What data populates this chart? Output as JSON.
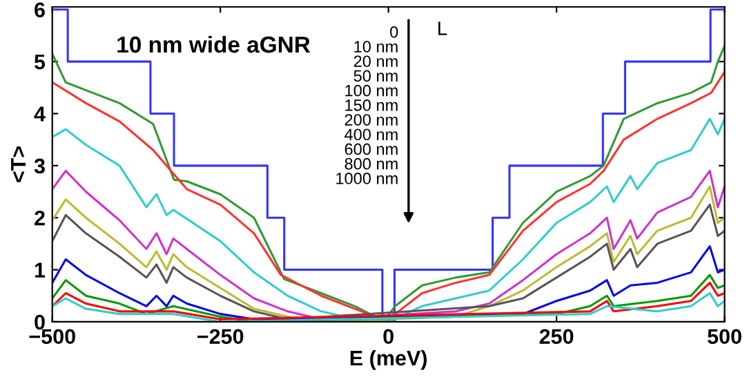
{
  "chart_data": {
    "type": "line",
    "xlabel": "E (meV)",
    "ylabel": "<T>",
    "xlim": [
      -500,
      500
    ],
    "ylim": [
      0,
      6.05
    ],
    "xticks": [
      -500,
      -250,
      0,
      250,
      500
    ],
    "yticks": [
      0,
      1,
      2,
      3,
      4,
      5,
      6
    ],
    "grid": false,
    "marker": "none",
    "line_style": "solid",
    "annotations": [
      "10 nm wide aGNR",
      "L",
      "0",
      "10 nm",
      "20 nm",
      "50 nm",
      "100 nm",
      "150 nm",
      "200 nm",
      "400 nm",
      "600 nm",
      "800 nm",
      "1000 nm"
    ],
    "series": [
      {
        "type": "step",
        "color": "#3333ff",
        "x": [
          -500,
          -477,
          -354,
          -319,
          -180,
          -155,
          -9,
          9,
          155,
          180,
          319,
          352,
          479,
          500
        ],
        "values": [
          6,
          5,
          4,
          3,
          2,
          1,
          0,
          1,
          2,
          3,
          4,
          5,
          6,
          6
        ]
      },
      {
        "color": "#339933",
        "x": [
          -500,
          -480,
          -450,
          -400,
          -350,
          -319,
          -300,
          -250,
          -200,
          -155,
          -100,
          -50,
          -20,
          -5,
          10,
          50,
          100,
          150,
          200,
          250,
          300,
          320,
          350,
          400,
          450,
          480,
          490,
          500
        ],
        "values": [
          5.15,
          4.6,
          4.45,
          4.2,
          3.8,
          2.73,
          2.7,
          2.45,
          2.0,
          0.82,
          0.55,
          0.3,
          0.1,
          0.05,
          0.3,
          0.7,
          0.85,
          0.95,
          1.9,
          2.5,
          2.8,
          3.0,
          3.9,
          4.2,
          4.4,
          4.6,
          5.0,
          5.3
        ]
      },
      {
        "color": "#ff3333",
        "x": [
          -500,
          -450,
          -400,
          -350,
          -320,
          -300,
          -250,
          -200,
          -160,
          -100,
          -50,
          -10,
          10,
          50,
          100,
          150,
          200,
          250,
          300,
          320,
          350,
          400,
          450,
          480,
          500
        ],
        "values": [
          4.6,
          4.2,
          3.85,
          3.3,
          2.85,
          2.55,
          2.25,
          1.7,
          0.9,
          0.5,
          0.25,
          0.05,
          0.15,
          0.55,
          0.75,
          0.9,
          1.75,
          2.3,
          2.65,
          2.9,
          3.5,
          3.9,
          4.2,
          4.4,
          4.8
        ]
      },
      {
        "color": "#33cccc",
        "x": [
          -500,
          -480,
          -450,
          -400,
          -360,
          -345,
          -330,
          -320,
          -250,
          -200,
          -150,
          -100,
          -50,
          0,
          50,
          100,
          150,
          200,
          250,
          300,
          325,
          335,
          360,
          370,
          400,
          450,
          478,
          490,
          500
        ],
        "values": [
          3.55,
          3.7,
          3.4,
          3.0,
          2.2,
          2.45,
          2.05,
          2.15,
          1.55,
          0.95,
          0.5,
          0.2,
          0.05,
          0,
          0.3,
          0.45,
          0.6,
          1.2,
          1.9,
          2.3,
          2.6,
          2.3,
          2.8,
          2.55,
          3.05,
          3.3,
          3.9,
          3.6,
          3.9
        ]
      },
      {
        "color": "#cc33cc",
        "x": [
          -500,
          -480,
          -450,
          -400,
          -360,
          -345,
          -330,
          -320,
          -300,
          -250,
          -200,
          -150,
          -100,
          100,
          150,
          200,
          250,
          300,
          325,
          335,
          360,
          370,
          400,
          450,
          478,
          490,
          500
        ],
        "values": [
          2.55,
          2.9,
          2.5,
          1.95,
          1.4,
          1.7,
          1.3,
          1.6,
          1.4,
          0.9,
          0.45,
          0.2,
          0.05,
          0.2,
          0.35,
          0.8,
          1.3,
          1.7,
          2.0,
          1.4,
          1.95,
          1.6,
          2.1,
          2.4,
          2.9,
          2.2,
          2.6
        ]
      },
      {
        "color": "#bbbb33",
        "x": [
          -500,
          -480,
          -450,
          -400,
          -360,
          -345,
          -330,
          -320,
          -300,
          -250,
          -200,
          -150,
          -100,
          100,
          150,
          200,
          250,
          300,
          325,
          335,
          360,
          370,
          400,
          450,
          478,
          490,
          500
        ],
        "values": [
          1.95,
          2.35,
          2.0,
          1.5,
          1.05,
          1.35,
          1.0,
          1.3,
          1.05,
          0.65,
          0.25,
          0.1,
          0.0,
          0.1,
          0.3,
          0.6,
          1.05,
          1.45,
          1.7,
          1.15,
          1.65,
          1.3,
          1.75,
          2.0,
          2.6,
          1.9,
          2.0
        ]
      },
      {
        "color": "#555555",
        "x": [
          -500,
          -480,
          -450,
          -400,
          -360,
          -345,
          -330,
          -320,
          -300,
          -250,
          -200,
          -150,
          150,
          200,
          250,
          300,
          325,
          335,
          360,
          370,
          400,
          450,
          478,
          490,
          500
        ],
        "values": [
          1.55,
          2.05,
          1.7,
          1.25,
          0.85,
          1.1,
          0.75,
          1.05,
          0.85,
          0.5,
          0.2,
          0.05,
          0.3,
          0.45,
          0.85,
          1.25,
          1.5,
          1.0,
          1.4,
          1.05,
          1.5,
          1.75,
          2.25,
          1.65,
          1.75
        ]
      },
      {
        "color": "#0000ee",
        "x": [
          -500,
          -480,
          -450,
          -400,
          -360,
          -345,
          -330,
          -320,
          -300,
          -250,
          -200,
          200,
          250,
          300,
          325,
          335,
          360,
          400,
          450,
          478,
          490,
          500
        ],
        "values": [
          0.75,
          1.2,
          0.9,
          0.55,
          0.3,
          0.5,
          0.3,
          0.5,
          0.35,
          0.15,
          0.05,
          0.15,
          0.4,
          0.6,
          0.8,
          0.5,
          0.7,
          0.75,
          0.95,
          1.45,
          0.95,
          1.0
        ]
      },
      {
        "color": "#009900",
        "x": [
          -500,
          -480,
          -450,
          -400,
          -360,
          -320,
          -250,
          -200,
          250,
          300,
          325,
          335,
          400,
          450,
          478,
          490,
          500
        ],
        "values": [
          0.45,
          0.8,
          0.5,
          0.35,
          0.15,
          0.3,
          0.1,
          0.0,
          0.15,
          0.3,
          0.5,
          0.3,
          0.4,
          0.5,
          0.9,
          0.65,
          0.7
        ]
      },
      {
        "color": "#ff0000",
        "x": [
          -500,
          -480,
          -450,
          -400,
          -320,
          -250,
          300,
          325,
          335,
          400,
          450,
          478,
          490,
          500
        ],
        "values": [
          0.3,
          0.55,
          0.35,
          0.2,
          0.2,
          0.05,
          0.2,
          0.4,
          0.2,
          0.3,
          0.4,
          0.75,
          0.5,
          0.55
        ]
      },
      {
        "color": "#33cccc",
        "x": [
          -500,
          -480,
          -450,
          -400,
          -320,
          -250,
          300,
          325,
          400,
          450,
          478,
          490,
          500
        ],
        "values": [
          0.3,
          0.45,
          0.25,
          0.15,
          0.15,
          0.0,
          0.15,
          0.3,
          0.2,
          0.3,
          0.55,
          0.3,
          0.4
        ]
      }
    ]
  }
}
